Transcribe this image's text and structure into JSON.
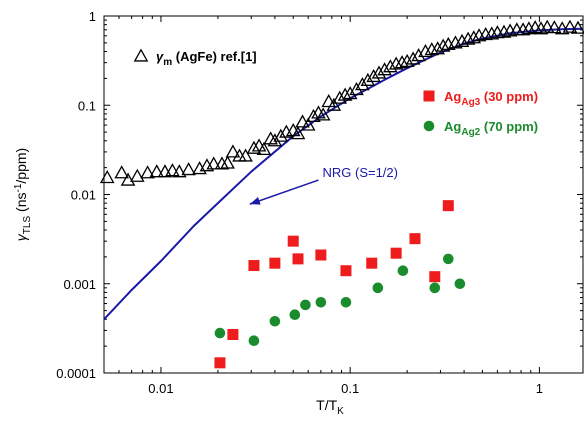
{
  "chart_data": {
    "type": "scatter",
    "x_scale": "log",
    "y_scale": "log",
    "xlim": [
      0.005,
      1.7
    ],
    "ylim": [
      0.0001,
      1
    ],
    "x_ticks": [
      {
        "v": 0.01,
        "label": "0.01"
      },
      {
        "v": 0.1,
        "label": "0.1"
      },
      {
        "v": 1,
        "label": "1"
      }
    ],
    "y_ticks": [
      {
        "v": 0.0001,
        "label": "0.0001"
      },
      {
        "v": 0.001,
        "label": "0.001"
      },
      {
        "v": 0.01,
        "label": "0.01"
      },
      {
        "v": 0.1,
        "label": "0.1"
      },
      {
        "v": 1,
        "label": "1"
      }
    ],
    "xlabel": {
      "main": "T/T",
      "sub": "K"
    },
    "ylabel": {
      "main": "γ",
      "sub": "TLS",
      "rest1": " (ns",
      "sup": "-1",
      "rest2": "/ppm)"
    },
    "grid": false,
    "series": [
      {
        "name": "γm (AgFe) ref.[1]",
        "legend": {
          "sym": "γ",
          "sub": "m",
          "rest": " (AgFe) ref.[1]"
        },
        "marker": "triangle-open",
        "color": "#000000",
        "points": [
          [
            0.0052,
            0.0155
          ],
          [
            0.0062,
            0.0175
          ],
          [
            0.0067,
            0.0145
          ],
          [
            0.0075,
            0.016
          ],
          [
            0.0085,
            0.0175
          ],
          [
            0.0095,
            0.018
          ],
          [
            0.0105,
            0.018
          ],
          [
            0.0115,
            0.0185
          ],
          [
            0.0125,
            0.018
          ],
          [
            0.014,
            0.019
          ],
          [
            0.016,
            0.0195
          ],
          [
            0.0175,
            0.021
          ],
          [
            0.019,
            0.022
          ],
          [
            0.021,
            0.022
          ],
          [
            0.0225,
            0.0225
          ],
          [
            0.024,
            0.03
          ],
          [
            0.026,
            0.027
          ],
          [
            0.028,
            0.027
          ],
          [
            0.031,
            0.033
          ],
          [
            0.033,
            0.035
          ],
          [
            0.035,
            0.032
          ],
          [
            0.038,
            0.042
          ],
          [
            0.04,
            0.04
          ],
          [
            0.043,
            0.045
          ],
          [
            0.046,
            0.05
          ],
          [
            0.05,
            0.052
          ],
          [
            0.053,
            0.048
          ],
          [
            0.056,
            0.065
          ],
          [
            0.06,
            0.06
          ],
          [
            0.064,
            0.075
          ],
          [
            0.068,
            0.082
          ],
          [
            0.072,
            0.078
          ],
          [
            0.077,
            0.11
          ],
          [
            0.082,
            0.1
          ],
          [
            0.088,
            0.12
          ],
          [
            0.094,
            0.13
          ],
          [
            0.1,
            0.135
          ],
          [
            0.108,
            0.15
          ],
          [
            0.116,
            0.17
          ],
          [
            0.124,
            0.19
          ],
          [
            0.133,
            0.21
          ],
          [
            0.142,
            0.23
          ],
          [
            0.152,
            0.25
          ],
          [
            0.163,
            0.27
          ],
          [
            0.175,
            0.29
          ],
          [
            0.188,
            0.3
          ],
          [
            0.2,
            0.31
          ],
          [
            0.215,
            0.33
          ],
          [
            0.23,
            0.36
          ],
          [
            0.25,
            0.4
          ],
          [
            0.27,
            0.42
          ],
          [
            0.29,
            0.43
          ],
          [
            0.31,
            0.46
          ],
          [
            0.33,
            0.48
          ],
          [
            0.36,
            0.5
          ],
          [
            0.39,
            0.52
          ],
          [
            0.42,
            0.55
          ],
          [
            0.45,
            0.57
          ],
          [
            0.48,
            0.6
          ],
          [
            0.52,
            0.62
          ],
          [
            0.56,
            0.63
          ],
          [
            0.6,
            0.65
          ],
          [
            0.65,
            0.66
          ],
          [
            0.7,
            0.68
          ],
          [
            0.76,
            0.7
          ],
          [
            0.82,
            0.7
          ],
          [
            0.88,
            0.72
          ],
          [
            0.95,
            0.74
          ],
          [
            1.02,
            0.72
          ],
          [
            1.1,
            0.75
          ],
          [
            1.2,
            0.74
          ],
          [
            1.32,
            0.72
          ],
          [
            1.45,
            0.75
          ],
          [
            1.6,
            0.73
          ]
        ]
      },
      {
        "name": "AgAg3 (30 ppm)",
        "legend": {
          "sym": "Ag",
          "sub": "Ag3",
          "rest": " (30 ppm)"
        },
        "marker": "square",
        "color": "#ee1c1c",
        "points": [
          [
            0.0205,
            0.00013
          ],
          [
            0.024,
            0.00027
          ],
          [
            0.031,
            0.0016
          ],
          [
            0.04,
            0.0017
          ],
          [
            0.05,
            0.003
          ],
          [
            0.053,
            0.0019
          ],
          [
            0.07,
            0.0021
          ],
          [
            0.095,
            0.0014
          ],
          [
            0.13,
            0.0017
          ],
          [
            0.175,
            0.0022
          ],
          [
            0.22,
            0.0032
          ],
          [
            0.28,
            0.0012
          ],
          [
            0.33,
            0.0075
          ]
        ]
      },
      {
        "name": "AgAg2 (70 ppm)",
        "legend": {
          "sym": "Ag",
          "sub": "Ag2",
          "rest": " (70 ppm)"
        },
        "marker": "circle",
        "color": "#1a8c2e",
        "points": [
          [
            0.0205,
            0.00028
          ],
          [
            0.031,
            0.00023
          ],
          [
            0.04,
            0.00038
          ],
          [
            0.051,
            0.00045
          ],
          [
            0.058,
            0.00058
          ],
          [
            0.07,
            0.00062
          ],
          [
            0.095,
            0.00062
          ],
          [
            0.14,
            0.0009
          ],
          [
            0.19,
            0.0014
          ],
          [
            0.28,
            0.0009
          ],
          [
            0.33,
            0.0019
          ],
          [
            0.38,
            0.001
          ]
        ]
      }
    ],
    "nrg_curve": {
      "name": "NRG (S=1/2)",
      "color": "#1a1aa8",
      "points": [
        [
          0.005,
          0.0004
        ],
        [
          0.007,
          0.00085
        ],
        [
          0.01,
          0.0018
        ],
        [
          0.015,
          0.0045
        ],
        [
          0.02,
          0.008
        ],
        [
          0.03,
          0.018
        ],
        [
          0.05,
          0.045
        ],
        [
          0.07,
          0.075
        ],
        [
          0.1,
          0.12
        ],
        [
          0.15,
          0.19
        ],
        [
          0.2,
          0.26
        ],
        [
          0.3,
          0.39
        ],
        [
          0.4,
          0.49
        ],
        [
          0.5,
          0.56
        ],
        [
          0.7,
          0.64
        ],
        [
          1.0,
          0.69
        ],
        [
          1.3,
          0.71
        ],
        [
          1.7,
          0.72
        ]
      ]
    },
    "annotation": {
      "label": "NRG (S=1/2)",
      "color": "#1a1aa8",
      "arrow_tail": [
        0.068,
        0.0145
      ],
      "arrow_head": [
        0.0295,
        0.0078
      ]
    }
  }
}
